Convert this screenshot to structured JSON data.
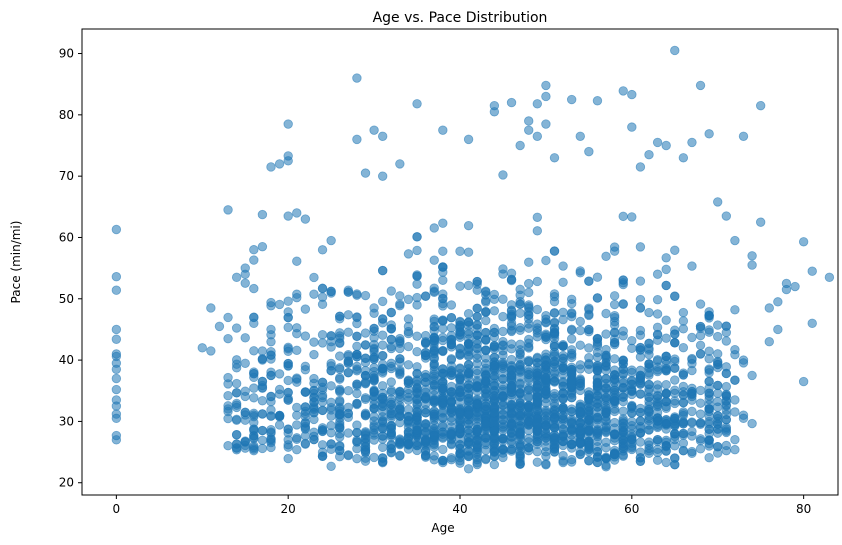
{
  "chart_data": {
    "type": "scatter",
    "title": "Age vs. Pace Distribution",
    "xlabel": "Age",
    "ylabel": "Pace (min/mi)",
    "xlim": [
      -4,
      84
    ],
    "ylim": [
      18,
      94
    ],
    "xticks": [
      "0",
      "20",
      "40",
      "60",
      "80"
    ],
    "yticks": [
      "20",
      "30",
      "40",
      "50",
      "60",
      "70",
      "80",
      "90"
    ],
    "grid": false,
    "legend": "none",
    "marker_color": "#1f77b4",
    "marker_alpha": 0.55,
    "series": [
      {
        "x": [
          0,
          0,
          0,
          0,
          0,
          0,
          0,
          0,
          0,
          0,
          0,
          0,
          0,
          0,
          0,
          0,
          0,
          10,
          11,
          11,
          12,
          13,
          13,
          14,
          15,
          16,
          16,
          17,
          18,
          19,
          20,
          20,
          20,
          20,
          21,
          22,
          25,
          28,
          28,
          29,
          30,
          31,
          31,
          33,
          35,
          38,
          41,
          44,
          44,
          45,
          46,
          47,
          48,
          48,
          49,
          49,
          50,
          50,
          50,
          51,
          53,
          54,
          55,
          56,
          59,
          60,
          60,
          61,
          62,
          63,
          64,
          65,
          66,
          67,
          68,
          69,
          70,
          71,
          72,
          73,
          74,
          74,
          75,
          75,
          76,
          77,
          78,
          79,
          80,
          80,
          81,
          81,
          83,
          71,
          72,
          73,
          74,
          69,
          70,
          68,
          73,
          76,
          78,
          77
        ],
        "y": [
          61.3,
          53.6,
          51.4,
          45,
          43.4,
          41,
          40.6,
          39.5,
          38.5,
          37,
          35.2,
          33.5,
          32.5,
          31.2,
          30.5,
          27.7,
          27,
          42,
          41.5,
          48.5,
          45.5,
          64.5,
          43.5,
          53.5,
          54,
          58,
          47,
          58.5,
          71.5,
          72,
          73.3,
          78.5,
          72.5,
          63.5,
          64,
          63,
          59.5,
          86,
          76,
          70.5,
          77.5,
          76.5,
          70,
          72,
          81.8,
          77.5,
          76,
          81.5,
          80.5,
          70.2,
          82,
          75,
          77.5,
          79,
          81.8,
          76.5,
          84.8,
          83,
          78.5,
          73,
          82.5,
          76.5,
          74,
          82.3,
          83.9,
          83.3,
          78,
          71.5,
          73.5,
          75.5,
          75,
          90.5,
          73,
          75.5,
          84.8,
          76.9,
          65.8,
          63.5,
          59.5,
          76.5,
          57,
          55.5,
          81.5,
          62.5,
          48.5,
          49.5,
          51.5,
          52,
          59.3,
          36.5,
          46,
          54.5,
          53.5,
          44.5,
          33.5,
          30.5,
          37.5,
          28,
          30,
          44,
          40,
          43,
          52.5,
          45
        ]
      }
    ]
  }
}
